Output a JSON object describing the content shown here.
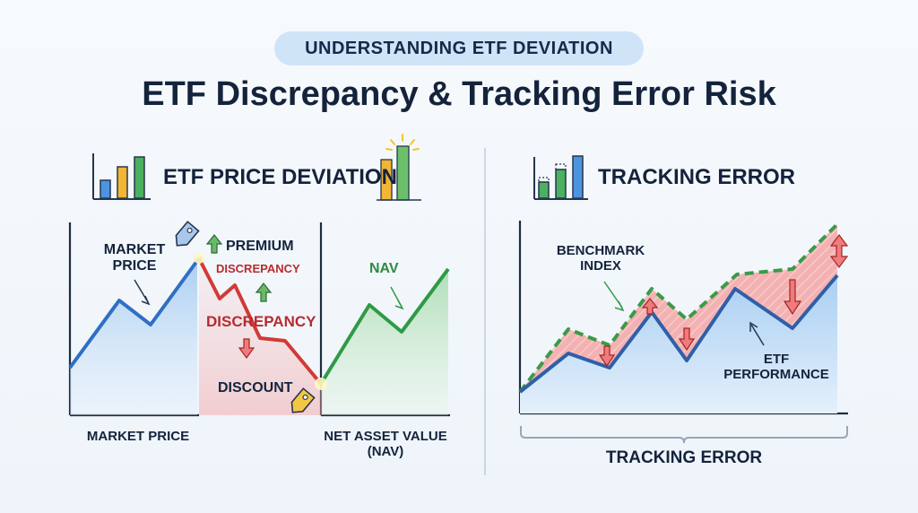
{
  "header": {
    "kicker": "UNDERSTANDING ETF DEVIATION",
    "title": "ETF Discrepancy & Tracking Error Risk"
  },
  "left_panel": {
    "title": "ETF PRICE DEVIATION",
    "market_price_label": "MARKET\nPRICE",
    "premium_label": "PREMIUM",
    "discrepancy_small": "DISCREPANCY",
    "discrepancy_large": "DISCREPANCY",
    "discount_label": "DISCOUNT",
    "nav_label": "NAV",
    "axis_left_label": "MARKET PRICE",
    "axis_right_label": "NET ASSET VALUE\n(NAV)"
  },
  "right_panel": {
    "title": "TRACKING ERROR",
    "benchmark_label": "BENCHMARK\nINDEX",
    "etf_label": "ETF\nPERFORMANCE",
    "bracket_label": "TRACKING ERROR"
  },
  "icons": {
    "left_bars": "bar-chart-icon",
    "right_bars": "bar-chart-icon",
    "premium_tag": "price-tag-icon",
    "discount_tag": "price-tag-icon"
  },
  "colors": {
    "market_line": "#2f6fc4",
    "nav_line": "#2f9a46",
    "discrepancy": "#c0282e",
    "benchmark": "#3a9a48",
    "gap_fill": "#f19a9a",
    "etf_fill": "#bcd9f4"
  }
}
